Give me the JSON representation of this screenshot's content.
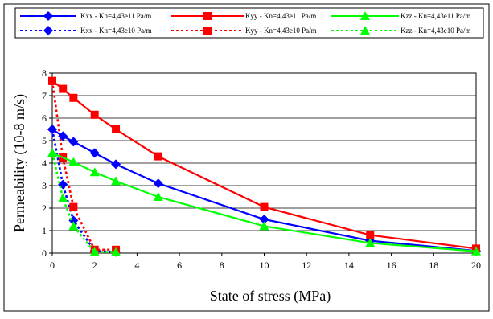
{
  "chart_data": {
    "type": "line",
    "title": "",
    "xlabel": "State of stress (MPa)",
    "ylabel": "Permeability (10-8 m/s)",
    "xlim": [
      0,
      20
    ],
    "ylim": [
      0,
      8
    ],
    "xticks": [
      0,
      2,
      4,
      6,
      8,
      10,
      12,
      14,
      16,
      18,
      20
    ],
    "yticks": [
      0,
      1,
      2,
      3,
      4,
      5,
      6,
      7,
      8
    ],
    "grid": "horizontal",
    "legend_position": "top",
    "series": [
      {
        "name": "Kxx - Kn=4,43e11 Pa/m",
        "color": "#0000ff",
        "dash": "solid",
        "marker": "diamond",
        "x": [
          0,
          0.5,
          1,
          2,
          3,
          5,
          10,
          15,
          20
        ],
        "y": [
          5.5,
          5.2,
          4.95,
          4.45,
          3.95,
          3.1,
          1.5,
          0.55,
          0.1
        ]
      },
      {
        "name": "Kyy - Kn=4,43e11 Pa/m",
        "color": "#ff0000",
        "dash": "solid",
        "marker": "square",
        "x": [
          0,
          0.5,
          1,
          2,
          3,
          5,
          10,
          15,
          20
        ],
        "y": [
          7.65,
          7.3,
          6.9,
          6.15,
          5.5,
          4.3,
          2.05,
          0.8,
          0.2
        ]
      },
      {
        "name": "Kzz - Kn=4,43e11 Pa/m",
        "color": "#00ff00",
        "dash": "solid",
        "marker": "triangle",
        "x": [
          0,
          1,
          2,
          3,
          5,
          10,
          15,
          20
        ],
        "y": [
          4.45,
          4.05,
          3.6,
          3.2,
          2.5,
          1.2,
          0.45,
          0.08
        ]
      },
      {
        "name": "Kxx - Kn=4,43e10 Pa/m",
        "color": "#0000ff",
        "dash": "dotted",
        "marker": "diamond",
        "x": [
          0,
          0.5,
          1,
          2,
          3
        ],
        "y": [
          5.5,
          3.05,
          1.45,
          0.1,
          0.05
        ]
      },
      {
        "name": "Kyy - Kn=4,43e10 Pa/m",
        "color": "#ff0000",
        "dash": "dotted",
        "marker": "square",
        "x": [
          0,
          0.5,
          1,
          2,
          3
        ],
        "y": [
          7.65,
          4.25,
          2.05,
          0.15,
          0.15
        ]
      },
      {
        "name": "Kzz - Kn=4,43e10 Pa/m",
        "color": "#00ff00",
        "dash": "dotted",
        "marker": "triangle",
        "x": [
          0,
          0.5,
          1,
          2,
          3
        ],
        "y": [
          4.45,
          2.45,
          1.2,
          0.05,
          0.05
        ]
      }
    ]
  }
}
